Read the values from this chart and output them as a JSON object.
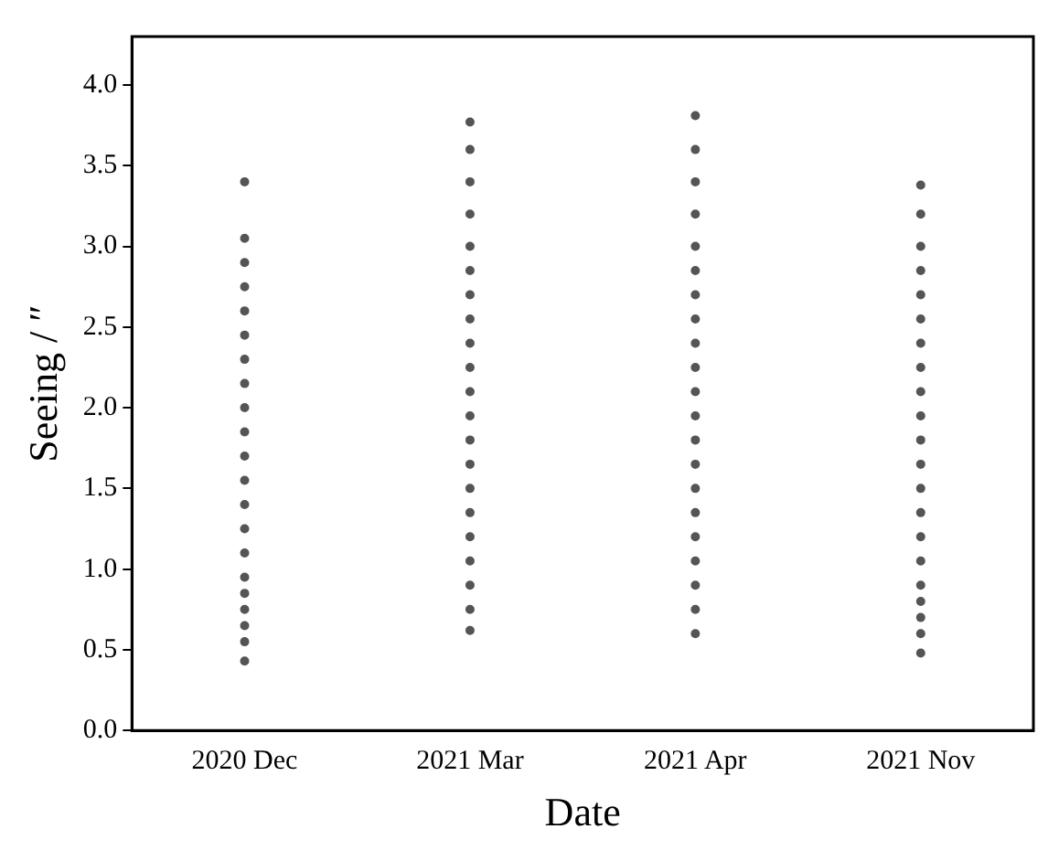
{
  "chart_data": {
    "type": "scatter",
    "xlabel": "Date",
    "ylabel": "Seeing / ″",
    "categories": [
      "2020 Dec",
      "2021 Mar",
      "2021 Apr",
      "2021 Nov"
    ],
    "ylim": [
      0,
      4.3
    ],
    "yticks": [
      {
        "value": 0,
        "label": "0.0"
      },
      {
        "value": 0.5,
        "label": "0.5"
      },
      {
        "value": 1,
        "label": "1.0"
      },
      {
        "value": 1.5,
        "label": "1.5"
      },
      {
        "value": 2,
        "label": "2.0"
      },
      {
        "value": 2.5,
        "label": "2.5"
      },
      {
        "value": 3,
        "label": "3.0"
      },
      {
        "value": 3.5,
        "label": "3.5"
      },
      {
        "value": 4,
        "label": "4.0"
      }
    ],
    "marker": "circle",
    "series": [
      {
        "type": "scatter",
        "color": "#555555",
        "x": [
          "2020 Dec",
          "2020 Dec",
          "2020 Dec",
          "2020 Dec",
          "2020 Dec",
          "2020 Dec",
          "2020 Dec",
          "2020 Dec",
          "2020 Dec",
          "2020 Dec",
          "2020 Dec",
          "2020 Dec",
          "2020 Dec",
          "2020 Dec",
          "2020 Dec",
          "2020 Dec",
          "2020 Dec",
          "2020 Dec",
          "2020 Dec",
          "2020 Dec",
          "2020 Dec",
          "2021 Mar",
          "2021 Mar",
          "2021 Mar",
          "2021 Mar",
          "2021 Mar",
          "2021 Mar",
          "2021 Mar",
          "2021 Mar",
          "2021 Mar",
          "2021 Mar",
          "2021 Mar",
          "2021 Mar",
          "2021 Mar",
          "2021 Mar",
          "2021 Mar",
          "2021 Mar",
          "2021 Mar",
          "2021 Mar",
          "2021 Mar",
          "2021 Mar",
          "2021 Mar",
          "2021 Apr",
          "2021 Apr",
          "2021 Apr",
          "2021 Apr",
          "2021 Apr",
          "2021 Apr",
          "2021 Apr",
          "2021 Apr",
          "2021 Apr",
          "2021 Apr",
          "2021 Apr",
          "2021 Apr",
          "2021 Apr",
          "2021 Apr",
          "2021 Apr",
          "2021 Apr",
          "2021 Apr",
          "2021 Apr",
          "2021 Apr",
          "2021 Apr",
          "2021 Apr",
          "2021 Nov",
          "2021 Nov",
          "2021 Nov",
          "2021 Nov",
          "2021 Nov",
          "2021 Nov",
          "2021 Nov",
          "2021 Nov",
          "2021 Nov",
          "2021 Nov",
          "2021 Nov",
          "2021 Nov",
          "2021 Nov",
          "2021 Nov",
          "2021 Nov",
          "2021 Nov",
          "2021 Nov",
          "2021 Nov",
          "2021 Nov",
          "2021 Nov",
          "2021 Nov"
        ],
        "values": [
          0.43,
          0.55,
          0.65,
          0.75,
          0.85,
          0.95,
          1.1,
          1.25,
          1.4,
          1.55,
          1.7,
          1.85,
          2.0,
          2.15,
          2.3,
          2.45,
          2.6,
          2.75,
          2.9,
          3.05,
          3.4,
          0.62,
          0.75,
          0.9,
          1.05,
          1.2,
          1.35,
          1.5,
          1.65,
          1.8,
          1.95,
          2.1,
          2.25,
          2.4,
          2.55,
          2.7,
          2.85,
          3.0,
          3.2,
          3.4,
          3.6,
          3.77,
          0.6,
          0.75,
          0.9,
          1.05,
          1.2,
          1.35,
          1.5,
          1.65,
          1.8,
          1.95,
          2.1,
          2.25,
          2.4,
          2.55,
          2.7,
          2.85,
          3.0,
          3.2,
          3.4,
          3.6,
          3.81,
          0.48,
          0.6,
          0.7,
          0.8,
          0.9,
          1.05,
          1.2,
          1.35,
          1.5,
          1.65,
          1.8,
          1.95,
          2.1,
          2.25,
          2.4,
          2.55,
          2.7,
          2.85,
          3.0,
          3.2,
          3.38
        ]
      }
    ]
  }
}
